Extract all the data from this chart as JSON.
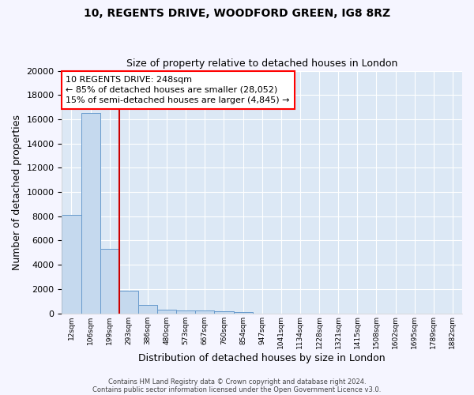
{
  "title1": "10, REGENTS DRIVE, WOODFORD GREEN, IG8 8RZ",
  "title2": "Size of property relative to detached houses in London",
  "xlabel": "Distribution of detached houses by size in London",
  "ylabel": "Number of detached properties",
  "bar_labels": [
    "12sqm",
    "106sqm",
    "199sqm",
    "293sqm",
    "386sqm",
    "480sqm",
    "573sqm",
    "667sqm",
    "760sqm",
    "854sqm",
    "947sqm",
    "1041sqm",
    "1134sqm",
    "1228sqm",
    "1321sqm",
    "1415sqm",
    "1508sqm",
    "1602sqm",
    "1695sqm",
    "1789sqm",
    "1882sqm"
  ],
  "bar_values": [
    8100,
    16500,
    5300,
    1850,
    700,
    300,
    230,
    200,
    170,
    130,
    0,
    0,
    0,
    0,
    0,
    0,
    0,
    0,
    0,
    0,
    0
  ],
  "bar_color": "#c5d9ee",
  "bar_edge_color": "#6699cc",
  "background_color": "#dce8f5",
  "grid_color": "#ffffff",
  "red_line_x": 2.5,
  "ylim": [
    0,
    20000
  ],
  "annotation_text": "10 REGENTS DRIVE: 248sqm\n← 85% of detached houses are smaller (28,052)\n15% of semi-detached houses are larger (4,845) →",
  "footer1": "Contains HM Land Registry data © Crown copyright and database right 2024.",
  "footer2": "Contains public sector information licensed under the Open Government Licence v3.0.",
  "fig_bg": "#f5f5ff"
}
